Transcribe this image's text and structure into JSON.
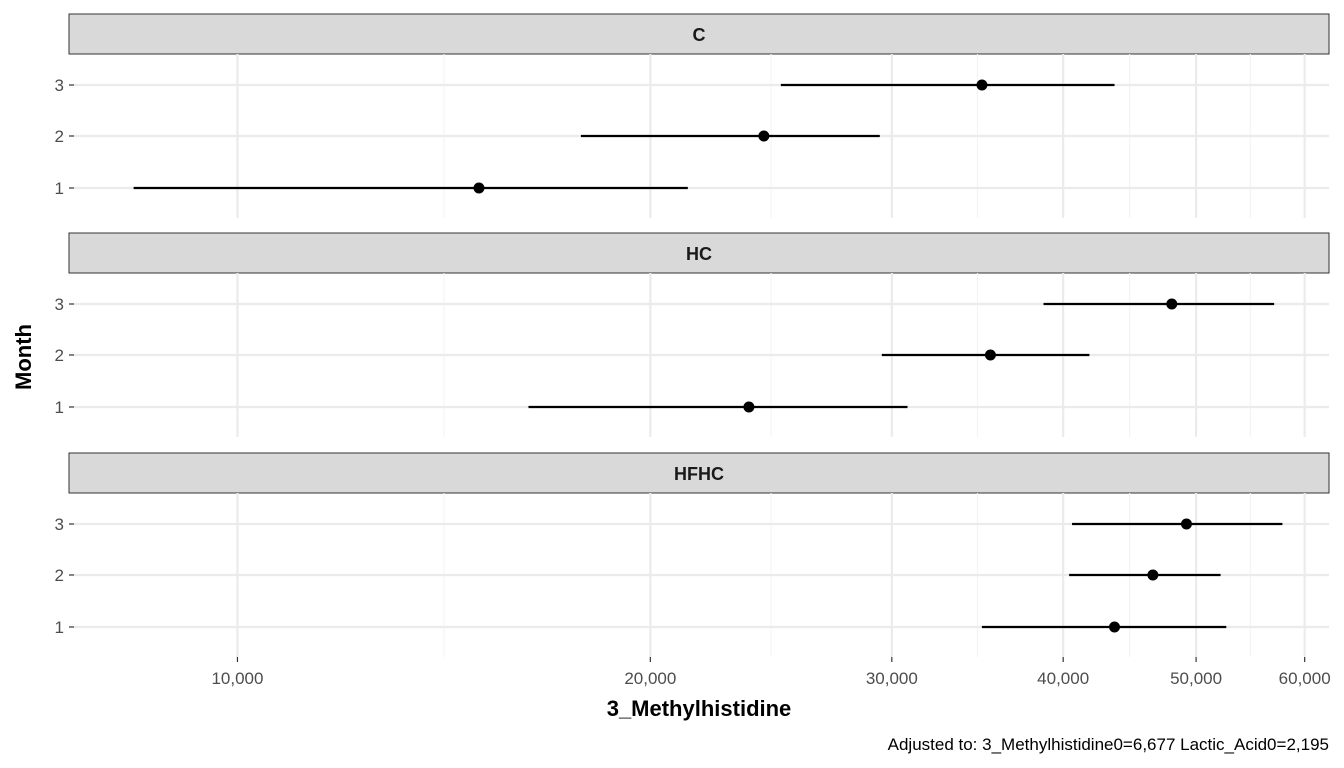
{
  "chart_data": {
    "type": "errorbar",
    "xlabel": "3_Methylhistidine",
    "ylabel": "Month",
    "caption": "Adjusted to: 3_Methylhistidine0=6,677 Lactic_Acid0=2,195",
    "x_scale": "log",
    "xlim": [
      7600,
      62500
    ],
    "x_ticks": [
      10000,
      20000,
      30000,
      40000,
      50000,
      60000
    ],
    "x_tick_labels": [
      "10,000",
      "20,000",
      "30,000",
      "40,000",
      "50,000",
      "60,000"
    ],
    "y_categories": [
      "1",
      "2",
      "3"
    ],
    "grid": true,
    "panels": [
      {
        "label": "C",
        "points": [
          {
            "month": "1",
            "estimate": 15000,
            "lower": 8400,
            "upper": 21300
          },
          {
            "month": "2",
            "estimate": 24200,
            "lower": 17800,
            "upper": 29400
          },
          {
            "month": "3",
            "estimate": 34900,
            "lower": 24900,
            "upper": 43600
          }
        ]
      },
      {
        "label": "HC",
        "points": [
          {
            "month": "1",
            "estimate": 23600,
            "lower": 16300,
            "upper": 30800
          },
          {
            "month": "2",
            "estimate": 35400,
            "lower": 29500,
            "upper": 41800
          },
          {
            "month": "3",
            "estimate": 48000,
            "lower": 38700,
            "upper": 57000
          }
        ]
      },
      {
        "label": "HFHC",
        "points": [
          {
            "month": "1",
            "estimate": 43600,
            "lower": 34900,
            "upper": 52600
          },
          {
            "month": "2",
            "estimate": 46500,
            "lower": 40400,
            "upper": 52100
          },
          {
            "month": "3",
            "estimate": 49200,
            "lower": 40600,
            "upper": 57800
          }
        ]
      }
    ]
  },
  "colors": {
    "strip_fill": "#d9d9d9",
    "strip_border": "#333333",
    "grid_major": "#ebebeb",
    "grid_minor": "#f4f4f4",
    "mark": "#000000"
  }
}
